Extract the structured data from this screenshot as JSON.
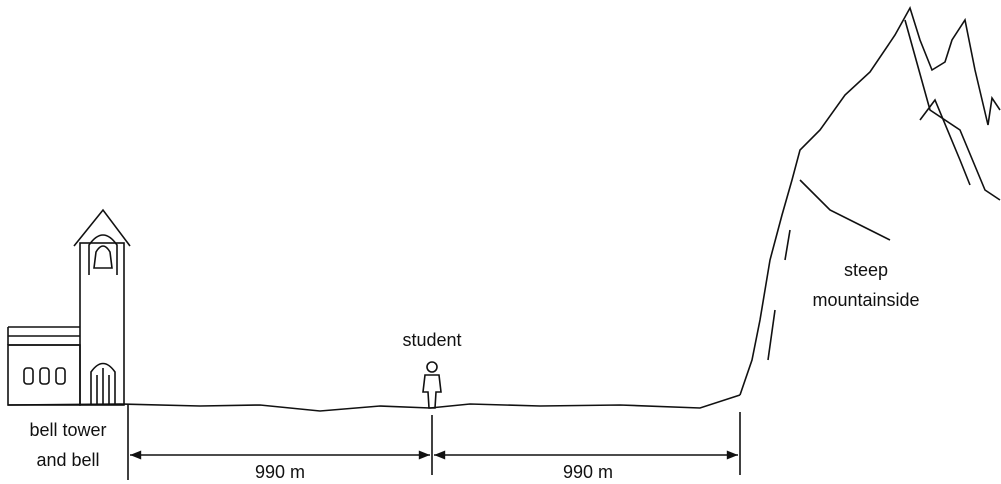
{
  "labels": {
    "bell_tower": [
      "bell tower",
      "and bell"
    ],
    "student": "student",
    "mountain": [
      "steep",
      "mountainside"
    ]
  },
  "distances": [
    "990 m",
    "990 m"
  ]
}
